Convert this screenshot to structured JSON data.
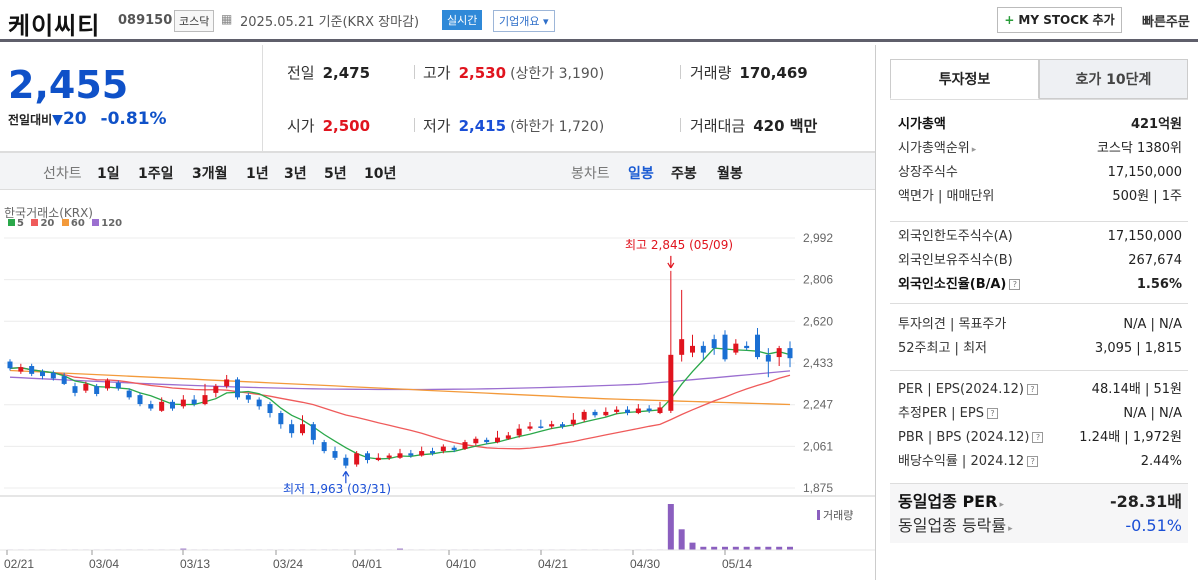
{
  "header": {
    "name": "케이씨티",
    "code": "089150",
    "market": "코스닥",
    "date": "2025.05.21  기준(KRX 장마감)",
    "realtime": "실시간",
    "company_info": "기업개요",
    "mystock": "MY STOCK 추가",
    "quick_order": "빠른주문"
  },
  "price": {
    "current": "2,455",
    "change_label": "전일대비",
    "change": "20",
    "change_pct": "-0.81%",
    "prev_label": "전일",
    "prev": "2,475",
    "high_label": "고가",
    "high": "2,530",
    "upper_limit": "(상한가 3,190)",
    "volume_label": "거래량",
    "volume": "170,469",
    "open_label": "시가",
    "open": "2,500",
    "low_label": "저가",
    "low": "2,415",
    "lower_limit": "(하한가 1,720)",
    "amount_label": "거래대금",
    "amount": "420 백만"
  },
  "toolbar": {
    "line_chart": "선차트",
    "periods": [
      "1일",
      "1주일",
      "3개월",
      "1년",
      "3년",
      "5년",
      "10년"
    ],
    "candle_chart": "봉차트",
    "candle_periods": [
      "일봉",
      "주봉",
      "월봉"
    ]
  },
  "chart_data": {
    "type": "candlestick",
    "source": "한국거래소(KRX)",
    "ma_legend": [
      {
        "name": "5",
        "color": "#2aa84a"
      },
      {
        "name": "20",
        "color": "#ef5b5b"
      },
      {
        "name": "60",
        "color": "#f39a3b"
      },
      {
        "name": "120",
        "color": "#9b6fd0"
      }
    ],
    "y_ticks": [
      "2,992",
      "2,806",
      "2,620",
      "2,433",
      "2,247",
      "2,061",
      "1,875"
    ],
    "x_ticks": [
      "02/21",
      "03/04",
      "03/13",
      "03/24",
      "04/01",
      "04/10",
      "04/21",
      "04/30",
      "05/14"
    ],
    "max_annotation": "최고 2,845 (05/09)",
    "min_annotation": "최저 1,963 (03/31)",
    "volume_label": "거래량",
    "ylim": [
      1875,
      2992
    ]
  },
  "panel": {
    "tab_invest": "투자정보",
    "tab_orderbook": "호가 10단계",
    "rows1": [
      {
        "k": "시가총액",
        "v": "421억원"
      },
      {
        "k": "시가총액순위",
        "v": "코스닥 1380위"
      },
      {
        "k": "상장주식수",
        "v": "17,150,000"
      },
      {
        "k": "액면가 | 매매단위",
        "v": "500원 | 1주"
      }
    ],
    "rows2": [
      {
        "k": "외국인한도주식수(A)",
        "v": "17,150,000"
      },
      {
        "k": "외국인보유주식수(B)",
        "v": "267,674"
      },
      {
        "k": "외국인소진율(B/A)",
        "v": "1.56%"
      }
    ],
    "rows3": [
      {
        "k": "투자의견 | 목표주가",
        "v": "N/A | N/A"
      },
      {
        "k": "52주최고 | 최저",
        "v": "3,095 | 1,815"
      }
    ],
    "rows4": [
      {
        "k": "PER | EPS(2024.12)",
        "v": "48.14배 | 51원"
      },
      {
        "k": "추정PER | EPS",
        "v": "N/A | N/A"
      },
      {
        "k": "PBR | BPS (2024.12)",
        "v": "1.24배 | 1,972원"
      },
      {
        "k": "배당수익률 | 2024.12",
        "v": "2.44%"
      }
    ],
    "rows5": [
      {
        "k": "동일업종 PER",
        "v": "-28.31배"
      },
      {
        "k": "동일업종 등락률",
        "v": "-0.51%"
      }
    ]
  }
}
